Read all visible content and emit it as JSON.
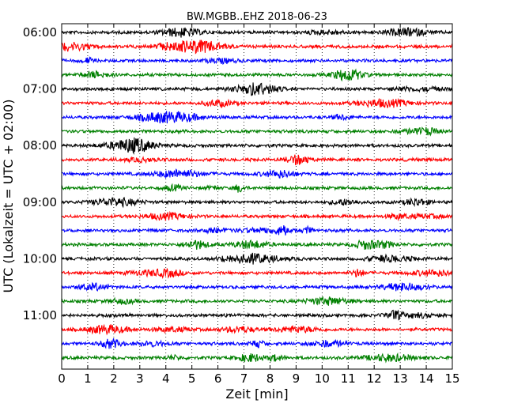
{
  "chart_data": {
    "type": "line",
    "title": "BW.MGBB..EHZ 2018-06-23",
    "xlabel": "Zeit  [min]",
    "ylabel": "UTC (Lokalzeit = UTC + 02:00)",
    "xlim": [
      0,
      15
    ],
    "x_ticks": [
      "0",
      "1",
      "2",
      "3",
      "4",
      "5",
      "6",
      "7",
      "8",
      "9",
      "10",
      "11",
      "12",
      "13",
      "14",
      "15"
    ],
    "y_tick_labels": [
      "06:00",
      "07:00",
      "08:00",
      "09:00",
      "10:00",
      "11:00"
    ],
    "grid": "vertical dotted lines at each minute",
    "trace_colors": [
      "#000000",
      "#ff0000",
      "#0000ff",
      "#008000"
    ],
    "series": [
      {
        "start": "06:00"
      },
      {
        "start": "06:15"
      },
      {
        "start": "06:30"
      },
      {
        "start": "06:45"
      },
      {
        "start": "07:00"
      },
      {
        "start": "07:15"
      },
      {
        "start": "07:30"
      },
      {
        "start": "07:45"
      },
      {
        "start": "08:00"
      },
      {
        "start": "08:15"
      },
      {
        "start": "08:30"
      },
      {
        "start": "08:45"
      },
      {
        "start": "09:00"
      },
      {
        "start": "09:15"
      },
      {
        "start": "09:30"
      },
      {
        "start": "09:45"
      },
      {
        "start": "10:00"
      },
      {
        "start": "10:15"
      },
      {
        "start": "10:30"
      },
      {
        "start": "10:45"
      },
      {
        "start": "11:00"
      },
      {
        "start": "11:15"
      },
      {
        "start": "11:30"
      },
      {
        "start": "11:45"
      }
    ]
  }
}
